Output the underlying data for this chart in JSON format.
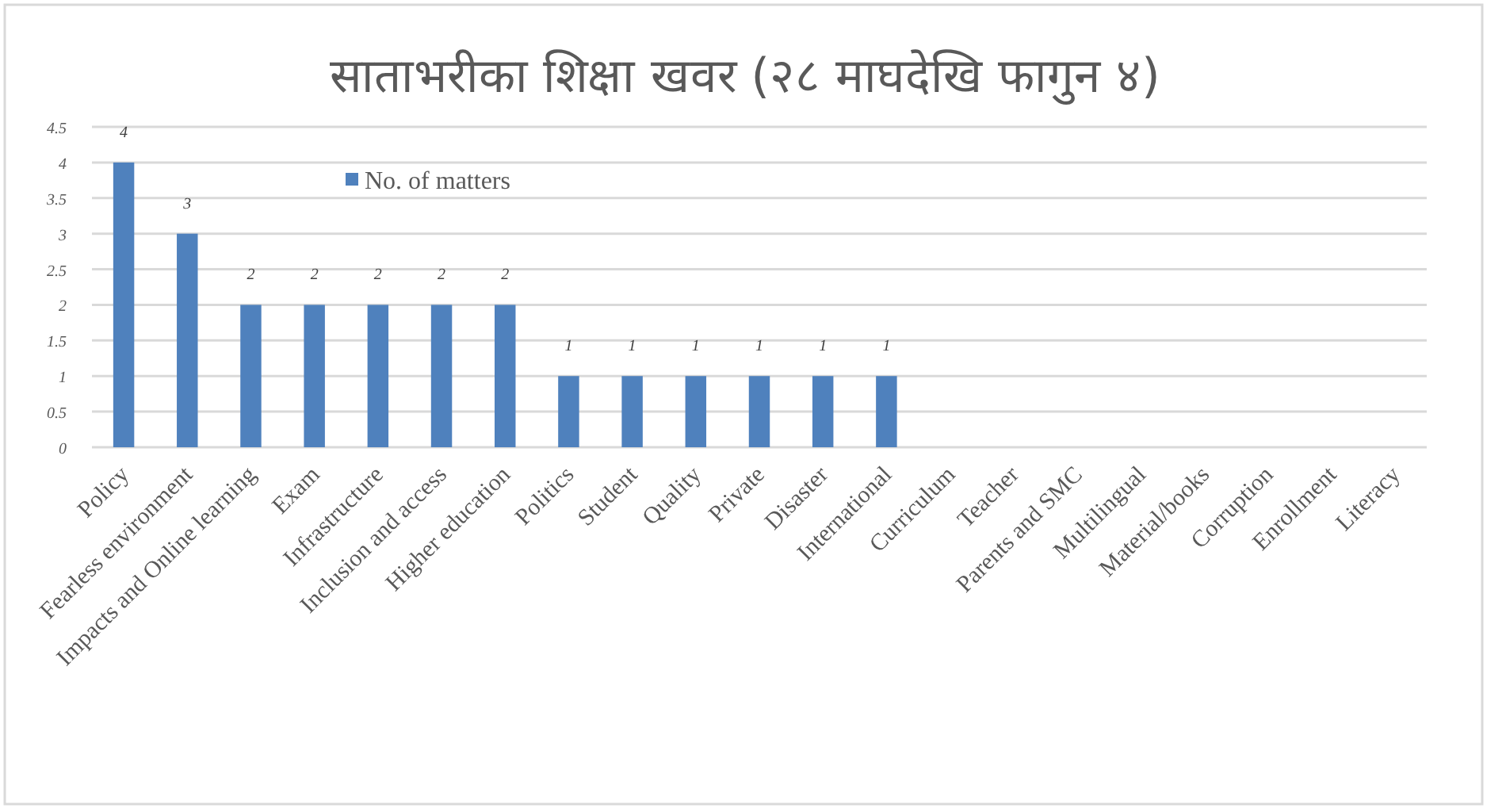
{
  "chart_data": {
    "type": "bar",
    "title": "साताभरीका शिक्षा खवर (२८ माघदेखि फागुन ४)",
    "categories": [
      "Policy",
      "Fearless environment",
      "Impacts and Online learning",
      "Exam",
      "Infrastructure",
      "Inclusion and access",
      "Higher education",
      "Politics",
      "Student",
      "Quality",
      "Private",
      "Disaster",
      "International",
      "Curriculum",
      "Teacher",
      "Parents and SMC",
      "Multilingual",
      "Material/books",
      "Corruption",
      "Enrollment",
      "Literacy"
    ],
    "series": [
      {
        "name": "No. of matters",
        "color": "#4f81bd",
        "values": [
          4,
          3,
          2,
          2,
          2,
          2,
          2,
          1,
          1,
          1,
          1,
          1,
          1,
          0,
          0,
          0,
          0,
          0,
          0,
          0,
          0
        ],
        "value_labels": [
          "4",
          "3",
          "2",
          "2",
          "2",
          "2",
          "2",
          "1",
          "1",
          "1",
          "1",
          "1",
          "1",
          null,
          null,
          null,
          null,
          null,
          null,
          null,
          null
        ]
      }
    ],
    "ylim": [
      0,
      4.5
    ],
    "yticks": [
      0,
      0.5,
      1,
      1.5,
      2,
      2.5,
      3,
      3.5,
      4,
      4.5
    ],
    "grid": "y",
    "legend": "top left"
  }
}
